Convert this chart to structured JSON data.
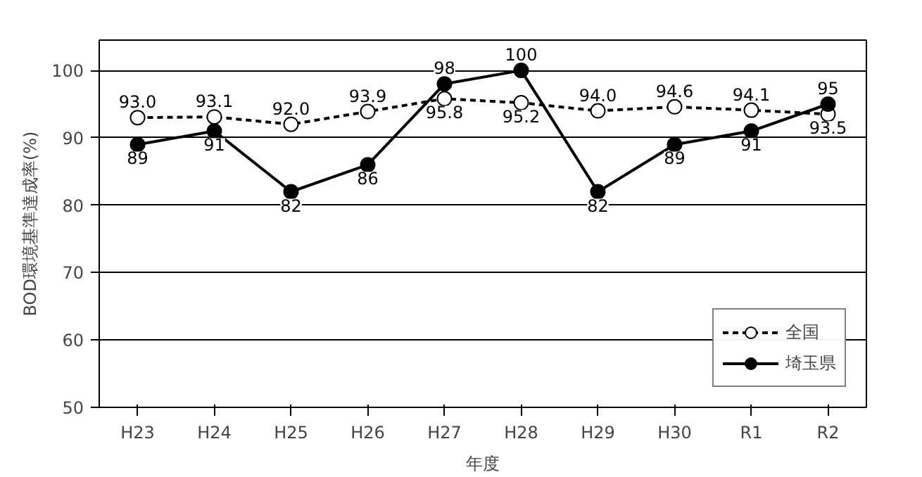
{
  "chart_data": {
    "type": "line",
    "xlabel": "年度",
    "ylabel": "BOD環境基準達成率(%)",
    "categories": [
      "H23",
      "H24",
      "H25",
      "H26",
      "H27",
      "H28",
      "H29",
      "H30",
      "R1",
      "R2"
    ],
    "ylim": [
      50,
      100
    ],
    "yticks": [
      50,
      60,
      70,
      80,
      90,
      100
    ],
    "grid": "y",
    "legend": "bottom right",
    "marker": "circle",
    "series": [
      {
        "name": "全国",
        "color": "#000000",
        "line_style": "dashed",
        "values": [
          93.0,
          93.1,
          92.0,
          93.9,
          95.8,
          95.2,
          94.0,
          94.6,
          94.1,
          93.5
        ],
        "value_labels": [
          "93.0",
          "93.1",
          "92.0",
          "93.9",
          "95.8",
          "95.2",
          "94.0",
          "94.6",
          "94.1",
          "93.5"
        ]
      },
      {
        "name": "埼玉県",
        "color": "#000000",
        "line_style": "solid",
        "values": [
          89,
          91,
          82,
          86,
          98,
          100,
          82,
          89,
          91,
          95
        ],
        "value_labels": [
          "89",
          "91",
          "82",
          "86",
          "98",
          "100",
          "82",
          "89",
          "91",
          "95"
        ]
      }
    ]
  }
}
